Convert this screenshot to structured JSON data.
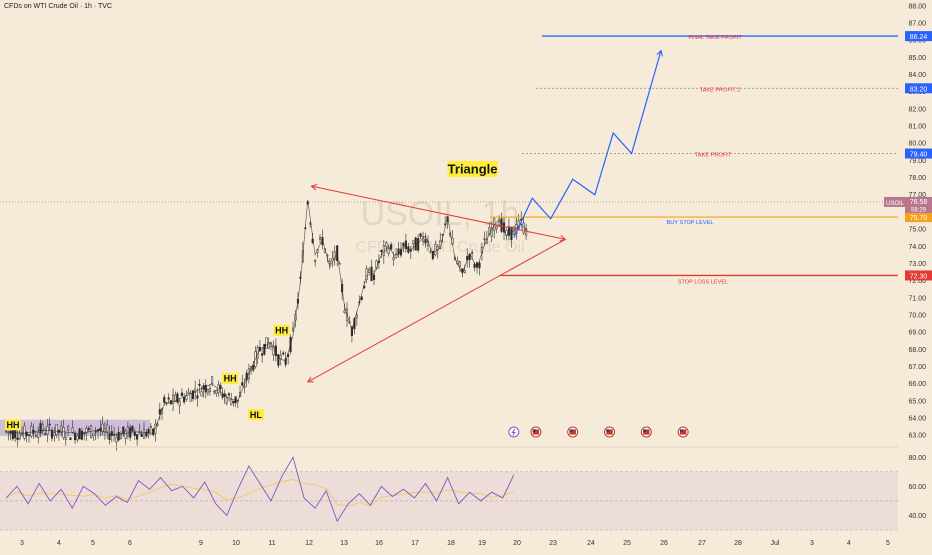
{
  "header": {
    "title": "CFDs on WTI Crude Oil · 1h · TVC"
  },
  "watermark": {
    "symbol": "USOIL, 1h",
    "name": "CFDs on WTI Crude Oil"
  },
  "colors": {
    "background": "#f6ead8",
    "candle": "#2b2b2b",
    "projection": "#2962ff",
    "triangle": "#e53935",
    "buy_stop": "#f7a21b",
    "stop_loss": "#e53935",
    "rsi_line": "#7e57c2",
    "rsi_ma": "#f2c84b",
    "label_bg": "#ffeb3b"
  },
  "chart_data": {
    "type": "line",
    "title": "CFDs on WTI Crude Oil · 1h · TVC",
    "x_ticks": [
      "3",
      "4",
      "5",
      "6",
      "9",
      "10",
      "11",
      "12",
      "13",
      "16",
      "17",
      "18",
      "19",
      "20",
      "23",
      "24",
      "25",
      "26",
      "27",
      "28",
      "Jul",
      "3",
      "4",
      "5"
    ],
    "y_ticks": [
      "88.00",
      "87.00",
      "86.00",
      "85.00",
      "84.00",
      "83.00",
      "82.00",
      "81.00",
      "80.00",
      "79.00",
      "78.00",
      "77.00",
      "76.00",
      "75.00",
      "74.00",
      "73.00",
      "72.00",
      "71.00",
      "70.00",
      "69.00",
      "68.00",
      "67.00",
      "66.00",
      "65.00",
      "64.00",
      "63.00"
    ],
    "ylim": [
      62.95,
      88.05
    ],
    "price_series": {
      "name": "USOIL",
      "x": [
        0,
        0.5,
        1,
        1.5,
        2,
        2.5,
        3,
        3.5,
        4,
        4.3,
        4.6,
        4.9,
        5.2,
        5.6,
        6.0,
        6.3,
        6.6,
        6.9,
        7.2,
        7.4,
        7.6,
        7.8,
        8.0,
        8.2,
        8.4,
        8.6,
        8.8,
        9.0,
        9.2,
        9.4,
        9.6,
        9.8,
        10.0,
        10.2,
        10.4,
        10.6,
        10.8,
        11.0,
        11.2,
        11.4,
        11.6,
        11.8,
        12.0,
        12.2,
        12.4,
        12.6,
        12.8,
        13.0,
        13.2,
        13.4,
        13.6,
        13.8,
        14.0,
        14.2
      ],
      "y": [
        63.2,
        63.1,
        63.3,
        63.2,
        63.1,
        63.3,
        63.0,
        63.2,
        63.1,
        64.8,
        65.0,
        65.3,
        65.6,
        66.0,
        65.2,
        65.0,
        66.6,
        68.0,
        68.4,
        67.5,
        67.3,
        68.8,
        71.9,
        76.7,
        73.5,
        74.4,
        72.8,
        73.6,
        70.5,
        69.1,
        70.7,
        72.3,
        72.4,
        73.5,
        74.0,
        73.3,
        74.0,
        73.8,
        74.2,
        74.6,
        73.6,
        73.9,
        75.7,
        73.3,
        72.4,
        73.6,
        72.7,
        74.1,
        75.0,
        75.6,
        74.6,
        74.9,
        75.3,
        74.8
      ]
    },
    "levels": [
      {
        "label": "FINAL TAKE PROFIT",
        "price": 86.24,
        "badge": "86.24"
      },
      {
        "label": "TAKE PROFIT  2",
        "price": 83.2,
        "badge": "83.20"
      },
      {
        "label": "TAKE PROFIT",
        "price": 79.4,
        "badge": "79.40"
      },
      {
        "label": "BUY STOP LEVEL",
        "price": 75.7,
        "badge": "75.70"
      },
      {
        "label": "STOP LOSS LEVEL",
        "price": 72.3,
        "badge": "72.30"
      }
    ],
    "current_price": {
      "symbol": "USOIL",
      "price": 76.58,
      "countdown": "58:29"
    },
    "projection_path": {
      "x": [
        13.8,
        14.3,
        14.8,
        15.4,
        16.0,
        16.5,
        17.0,
        17.8
      ],
      "y": [
        74.5,
        76.8,
        75.6,
        77.9,
        77.0,
        80.6,
        79.4,
        85.4
      ]
    },
    "triangle": {
      "upper_start": {
        "x": 8.3,
        "y": 77.5
      },
      "lower_start": {
        "x": 8.2,
        "y": 66.1
      },
      "apex": {
        "x": 15.2,
        "y": 74.4
      }
    },
    "annotations": [
      {
        "text": "Triangle",
        "x": 12.0,
        "y": 78.5
      },
      {
        "text": "HH",
        "x": 0.0,
        "y": 63.6
      },
      {
        "text": "HH",
        "x": 5.9,
        "y": 66.3
      },
      {
        "text": "HL",
        "x": 6.6,
        "y": 64.2
      },
      {
        "text": "HH",
        "x": 7.3,
        "y": 69.1
      }
    ],
    "event_markers_x": [
      13.8,
      14.4,
      15.4,
      16.4,
      17.4,
      18.4
    ],
    "rsi": {
      "ticks": [
        "80.00",
        "60.00",
        "40.00"
      ],
      "ylim": [
        30,
        85
      ],
      "band": [
        30,
        70
      ],
      "x": [
        0,
        0.3,
        0.6,
        0.9,
        1.2,
        1.5,
        1.8,
        2.1,
        2.4,
        2.7,
        3.0,
        3.3,
        3.6,
        3.9,
        4.2,
        4.5,
        4.8,
        5.1,
        5.4,
        5.7,
        6.0,
        6.3,
        6.6,
        6.9,
        7.2,
        7.5,
        7.8,
        8.1,
        8.4,
        8.7,
        9.0,
        9.3,
        9.6,
        9.9,
        10.2,
        10.5,
        10.8,
        11.1,
        11.4,
        11.7,
        12.0,
        12.3,
        12.6,
        12.9,
        13.2,
        13.5,
        13.8
      ],
      "y": [
        52,
        60,
        48,
        62,
        50,
        58,
        45,
        60,
        55,
        47,
        53,
        49,
        64,
        58,
        66,
        57,
        60,
        52,
        63,
        48,
        40,
        58,
        74,
        62,
        50,
        67,
        80,
        52,
        45,
        57,
        36,
        48,
        55,
        47,
        60,
        53,
        58,
        52,
        62,
        50,
        66,
        48,
        56,
        50,
        56,
        52,
        68
      ]
    }
  }
}
